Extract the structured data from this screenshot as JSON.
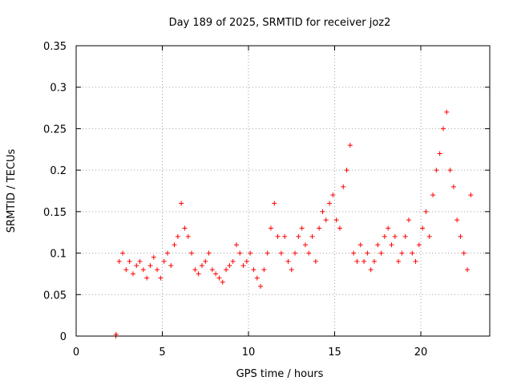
{
  "chart_data": {
    "type": "scatter",
    "title": "Day 189 of 2025, SRMTID for receiver joz2",
    "xlabel": "GPS time / hours",
    "ylabel": "SRMTID / TECUs",
    "xlim": [
      0,
      24
    ],
    "ylim": [
      0,
      0.35
    ],
    "x_ticks": [
      0,
      5,
      10,
      15,
      20
    ],
    "x_tick_labels": [
      "0",
      "5",
      "10",
      "15",
      "20"
    ],
    "y_ticks": [
      0,
      0.05,
      0.1,
      0.15,
      0.2,
      0.25,
      0.3,
      0.35
    ],
    "y_tick_labels": [
      "0",
      "0.05",
      "0.1",
      "0.15",
      "0.2",
      "0.25",
      "0.3",
      "0.35"
    ],
    "grid": true,
    "marker": "+",
    "color": "#ff0000",
    "series": [
      {
        "name": "SRMTID",
        "marker": "+",
        "x": [
          2.3,
          2.32,
          2.5,
          2.7,
          2.9,
          3.1,
          3.3,
          3.5,
          3.7,
          3.9,
          4.1,
          4.3,
          4.5,
          4.7,
          4.9,
          5.1,
          5.3,
          5.5,
          5.7,
          5.9,
          6.1,
          6.3,
          6.5,
          6.7,
          6.9,
          7.1,
          7.3,
          7.5,
          7.7,
          7.9,
          8.1,
          8.3,
          8.5,
          8.7,
          8.9,
          9.1,
          9.3,
          9.5,
          9.7,
          9.9,
          10.1,
          10.3,
          10.5,
          10.7,
          10.9,
          11.1,
          11.3,
          11.5,
          11.7,
          11.9,
          12.1,
          12.3,
          12.5,
          12.7,
          12.9,
          13.1,
          13.3,
          13.5,
          13.7,
          13.9,
          14.1,
          14.3,
          14.5,
          14.7,
          14.9,
          15.1,
          15.3,
          15.5,
          15.7,
          15.9,
          16.1,
          16.3,
          16.5,
          16.7,
          16.9,
          17.1,
          17.3,
          17.5,
          17.7,
          17.9,
          18.1,
          18.3,
          18.5,
          18.7,
          18.9,
          19.1,
          19.3,
          19.5,
          19.7,
          19.9,
          20.1,
          20.3,
          20.5,
          20.7,
          20.9,
          21.1,
          21.3,
          21.5,
          21.7,
          21.9,
          22.1,
          22.3,
          22.5,
          22.7,
          22.9
        ],
        "y": [
          0.0,
          0.002,
          0.09,
          0.1,
          0.08,
          0.09,
          0.075,
          0.085,
          0.09,
          0.08,
          0.07,
          0.085,
          0.095,
          0.08,
          0.07,
          0.09,
          0.1,
          0.085,
          0.11,
          0.12,
          0.16,
          0.13,
          0.12,
          0.1,
          0.08,
          0.075,
          0.085,
          0.09,
          0.1,
          0.08,
          0.075,
          0.07,
          0.065,
          0.08,
          0.085,
          0.09,
          0.11,
          0.1,
          0.085,
          0.09,
          0.1,
          0.08,
          0.07,
          0.06,
          0.08,
          0.1,
          0.13,
          0.16,
          0.12,
          0.1,
          0.12,
          0.09,
          0.08,
          0.1,
          0.12,
          0.13,
          0.11,
          0.1,
          0.12,
          0.09,
          0.13,
          0.15,
          0.14,
          0.16,
          0.17,
          0.14,
          0.13,
          0.18,
          0.2,
          0.23,
          0.1,
          0.09,
          0.11,
          0.09,
          0.1,
          0.08,
          0.09,
          0.11,
          0.1,
          0.12,
          0.13,
          0.11,
          0.12,
          0.09,
          0.1,
          0.12,
          0.14,
          0.1,
          0.09,
          0.11,
          0.13,
          0.15,
          0.12,
          0.17,
          0.2,
          0.22,
          0.25,
          0.27,
          0.2,
          0.18,
          0.14,
          0.12,
          0.1,
          0.08,
          0.17
        ]
      }
    ]
  }
}
